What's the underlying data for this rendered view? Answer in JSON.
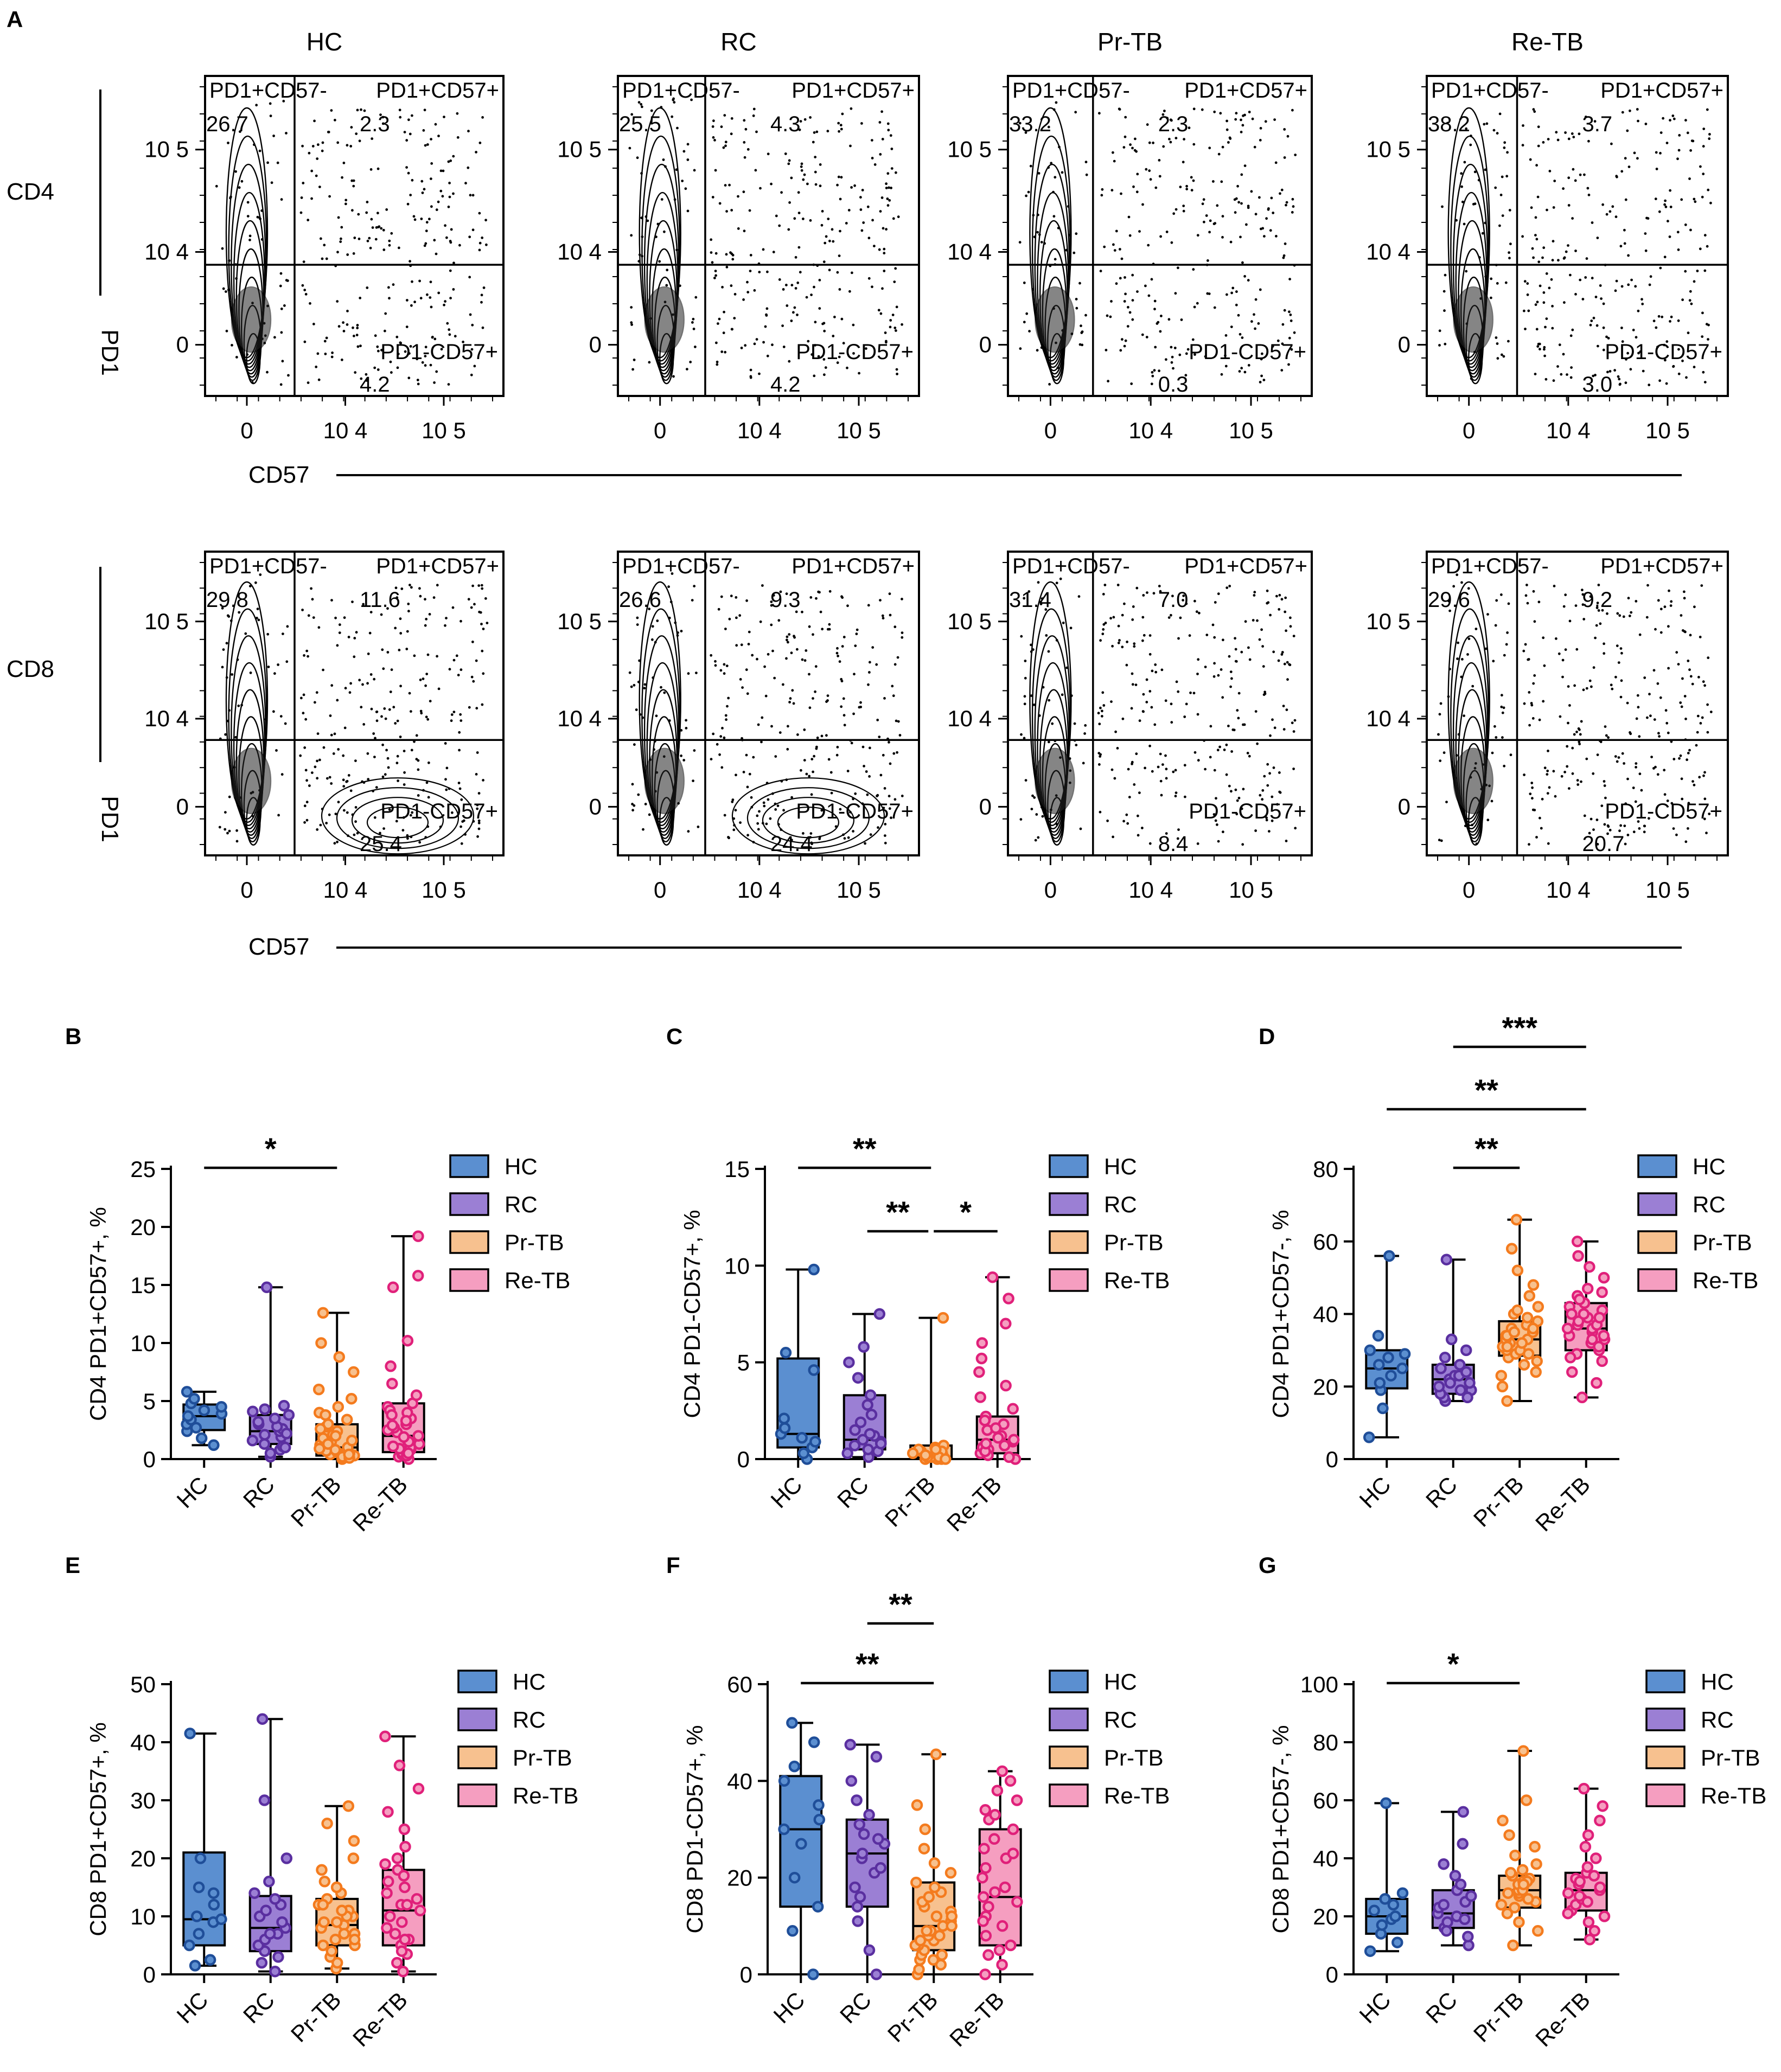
{
  "figure_labels": {
    "A": "A",
    "B": "B",
    "C": "C",
    "D": "D",
    "E": "E",
    "F": "F",
    "G": "G"
  },
  "group_names": [
    "HC",
    "RC",
    "Pr-TB",
    "Re-TB"
  ],
  "colors": {
    "HC": {
      "fill": "#5b8fd0",
      "stroke": "#1f4e99"
    },
    "RC": {
      "fill": "#9b7fd4",
      "stroke": "#5a2fa0"
    },
    "Pr-TB": {
      "fill": "#f7c18f",
      "stroke": "#f47b1e"
    },
    "Re-TB": {
      "fill": "#f59ec0",
      "stroke": "#e0207a"
    }
  },
  "flow": {
    "column_titles": [
      "HC",
      "RC",
      "Pr-TB",
      "Re-TB"
    ],
    "row_labels": [
      "CD4",
      "CD8"
    ],
    "y_axis_label": "PD1",
    "x_axis_label": "CD57",
    "y_ticks": [
      "10 5",
      "10 4",
      "0"
    ],
    "x_ticks": [
      "0",
      "10 4",
      "10 5"
    ],
    "gate_names": {
      "top_left": "PD1+CD57-",
      "top_right": "PD1+CD57+",
      "bottom_right": "PD1-CD57+"
    },
    "panels": [
      {
        "row": "CD4",
        "group": "HC",
        "top_left": "26.7",
        "top_right": "2.3",
        "bottom_right": "4.2"
      },
      {
        "row": "CD4",
        "group": "RC",
        "top_left": "25.5",
        "top_right": "4.3",
        "bottom_right": "4.2"
      },
      {
        "row": "CD4",
        "group": "Pr-TB",
        "top_left": "33.2",
        "top_right": "2.3",
        "bottom_right": "0.3"
      },
      {
        "row": "CD4",
        "group": "Re-TB",
        "top_left": "38.2",
        "top_right": "3.7",
        "bottom_right": "3.0"
      },
      {
        "row": "CD8",
        "group": "HC",
        "top_left": "29.8",
        "top_right": "11.6",
        "bottom_right": "25.4"
      },
      {
        "row": "CD8",
        "group": "RC",
        "top_left": "26.6",
        "top_right": "9.3",
        "bottom_right": "24.4"
      },
      {
        "row": "CD8",
        "group": "Pr-TB",
        "top_left": "31.4",
        "top_right": "7.0",
        "bottom_right": "8.4"
      },
      {
        "row": "CD8",
        "group": "Re-TB",
        "top_left": "29.6",
        "top_right": "9.2",
        "bottom_right": "20.7"
      }
    ]
  },
  "chart_data": [
    {
      "panel": "B",
      "type": "box",
      "ylabel": "CD4 PD1+CD57+, %",
      "ylim": [
        0,
        25
      ],
      "yticks": [
        0,
        5,
        10,
        15,
        20,
        25
      ],
      "categories": [
        "HC",
        "RC",
        "Pr-TB",
        "Re-TB"
      ],
      "series": [
        {
          "name": "HC",
          "min": 1.2,
          "q1": 2.5,
          "median": 3.7,
          "q3": 4.7,
          "max": 5.8,
          "points": [
            1.2,
            1.8,
            2.4,
            2.7,
            3.0,
            3.4,
            3.7,
            3.9,
            4.2,
            4.5,
            4.8,
            5.2,
            5.8
          ]
        },
        {
          "name": "RC",
          "min": 0.2,
          "q1": 1.3,
          "median": 2.4,
          "q3": 3.8,
          "max": 14.8,
          "points": [
            0.2,
            0.5,
            0.8,
            1.1,
            1.3,
            1.6,
            1.9,
            2.1,
            2.4,
            2.6,
            2.8,
            3.0,
            3.2,
            3.5,
            3.8,
            4.1,
            4.3,
            4.6,
            1.0,
            2.2,
            14.8
          ]
        },
        {
          "name": "Pr-TB",
          "min": 0,
          "q1": 0.3,
          "median": 1.0,
          "q3": 3.0,
          "max": 12.6,
          "points": [
            0,
            0.1,
            0.2,
            0.3,
            0.4,
            0.5,
            0.6,
            0.8,
            1.0,
            1.2,
            1.5,
            1.8,
            2.1,
            2.4,
            2.8,
            3.0,
            3.4,
            4.0,
            4.5,
            5.2,
            6.0,
            7.5,
            8.8,
            10.0,
            12.6,
            0.2,
            0.7,
            1.3,
            2.0,
            0.1,
            0.4,
            0.9,
            1.6,
            2.6,
            3.8
          ]
        },
        {
          "name": "Re-TB",
          "min": 0,
          "q1": 0.6,
          "median": 2.0,
          "q3": 4.8,
          "max": 19.2,
          "points": [
            0,
            0.2,
            0.4,
            0.6,
            0.8,
            1.0,
            1.3,
            1.6,
            2.0,
            2.3,
            2.7,
            3.0,
            3.5,
            4.0,
            4.5,
            4.8,
            5.5,
            6.5,
            8.0,
            10.2,
            14.8,
            15.8,
            19.2,
            0.3,
            0.9,
            1.5,
            2.5,
            3.3,
            4.2,
            0.5,
            1.1,
            1.9,
            2.9,
            3.8
          ]
        }
      ],
      "significance": [
        {
          "from": 0,
          "to": 2,
          "label": "*"
        }
      ]
    },
    {
      "panel": "C",
      "type": "box",
      "ylabel": "CD4 PD1-CD57+, %",
      "ylim": [
        0,
        15
      ],
      "yticks": [
        0,
        5,
        10,
        15
      ],
      "categories": [
        "HC",
        "RC",
        "Pr-TB",
        "Re-TB"
      ],
      "series": [
        {
          "name": "HC",
          "min": 0.0,
          "q1": 0.6,
          "median": 1.3,
          "q3": 5.2,
          "max": 9.8,
          "points": [
            0.0,
            0.3,
            0.6,
            0.9,
            1.1,
            1.3,
            1.6,
            2.1,
            4.6,
            5.5,
            9.8
          ]
        },
        {
          "name": "RC",
          "min": 0.1,
          "q1": 0.5,
          "median": 1.0,
          "q3": 3.3,
          "max": 7.5,
          "points": [
            0.1,
            0.3,
            0.5,
            0.7,
            0.9,
            1.0,
            1.2,
            1.5,
            1.9,
            2.3,
            2.8,
            3.3,
            4.2,
            5.0,
            5.8,
            7.5,
            0.4,
            0.8,
            1.3
          ]
        },
        {
          "name": "Pr-TB",
          "min": 0,
          "q1": 0.0,
          "median": 0.1,
          "q3": 0.7,
          "max": 7.3,
          "points": [
            0,
            0,
            0,
            0.1,
            0.1,
            0.1,
            0.2,
            0.2,
            0.3,
            0.3,
            0.4,
            0.5,
            0.6,
            0.7,
            0.4,
            0.2,
            0.1,
            0.3,
            0.5,
            0,
            7.3
          ]
        },
        {
          "name": "Re-TB",
          "min": 0,
          "q1": 0.3,
          "median": 1.0,
          "q3": 2.2,
          "max": 9.4,
          "points": [
            0,
            0.1,
            0.3,
            0.5,
            0.7,
            0.9,
            1.0,
            1.2,
            1.5,
            1.8,
            2.2,
            2.6,
            3.2,
            3.8,
            4.5,
            5.2,
            6.0,
            7.0,
            8.3,
            9.4,
            0.2,
            0.6,
            1.1,
            1.6,
            2.0,
            0.4,
            0.8
          ]
        }
      ],
      "significance": [
        {
          "from": 0,
          "to": 2,
          "label": "**"
        },
        {
          "from": 1,
          "to": 2,
          "label": "**"
        },
        {
          "from": 2,
          "to": 3,
          "label": "*"
        }
      ]
    },
    {
      "panel": "D",
      "type": "box",
      "ylabel": "CD4 PD1+CD57-, %",
      "ylim": [
        0,
        80
      ],
      "yticks": [
        0,
        20,
        40,
        60,
        80
      ],
      "categories": [
        "HC",
        "RC",
        "Pr-TB",
        "Re-TB"
      ],
      "series": [
        {
          "name": "HC",
          "min": 6,
          "q1": 19.5,
          "median": 25,
          "q3": 30,
          "max": 56,
          "points": [
            6,
            14,
            19,
            21,
            23,
            25,
            26,
            28,
            29,
            30,
            34,
            56
          ]
        },
        {
          "name": "RC",
          "min": 16,
          "q1": 18,
          "median": 22,
          "q3": 26,
          "max": 55,
          "points": [
            16,
            17,
            18,
            19,
            20,
            21,
            22,
            23,
            24,
            25,
            26,
            28,
            30,
            33,
            55,
            19,
            21,
            23,
            17,
            24
          ]
        },
        {
          "name": "Pr-TB",
          "min": 16,
          "q1": 28.5,
          "median": 33,
          "q3": 38,
          "max": 66,
          "points": [
            16,
            20,
            23,
            26,
            28,
            29,
            30,
            31,
            32,
            33,
            34,
            35,
            36,
            37,
            38,
            40,
            42,
            45,
            48,
            52,
            58,
            66,
            27,
            30,
            33,
            36,
            31,
            34,
            39,
            29,
            32,
            35,
            41,
            24
          ]
        },
        {
          "name": "Re-TB",
          "min": 17,
          "q1": 30,
          "median": 36,
          "q3": 43,
          "max": 60,
          "points": [
            17,
            21,
            24,
            27,
            29,
            30,
            32,
            33,
            34,
            35,
            36,
            37,
            38,
            39,
            40,
            41,
            42,
            43,
            45,
            47,
            50,
            53,
            56,
            60,
            31,
            34,
            37,
            40,
            44,
            28,
            36,
            46,
            33,
            39
          ]
        }
      ],
      "significance": [
        {
          "from": 1,
          "to": 3,
          "label": "***"
        },
        {
          "from": 0,
          "to": 3,
          "label": "**"
        },
        {
          "from": 1,
          "to": 2,
          "label": "**"
        }
      ]
    },
    {
      "panel": "E",
      "type": "box",
      "ylabel": "CD8 PD1+CD57+, %",
      "ylim": [
        0,
        50
      ],
      "yticks": [
        0,
        10,
        20,
        30,
        40,
        50
      ],
      "categories": [
        "HC",
        "RC",
        "Pr-TB",
        "Re-TB"
      ],
      "series": [
        {
          "name": "HC",
          "min": 1.5,
          "q1": 5,
          "median": 9.5,
          "q3": 21,
          "max": 41.5,
          "points": [
            1.5,
            2.5,
            5,
            7,
            9,
            9.5,
            10,
            12,
            14,
            15,
            20,
            41.5
          ]
        },
        {
          "name": "RC",
          "min": 0.5,
          "q1": 4,
          "median": 8,
          "q3": 13.5,
          "max": 44,
          "points": [
            0.5,
            2,
            4,
            5,
            6,
            7,
            8,
            9,
            10,
            12,
            13,
            14,
            16,
            20,
            30,
            44,
            3,
            11,
            7
          ]
        },
        {
          "name": "Pr-TB",
          "min": 1,
          "q1": 5,
          "median": 8.5,
          "q3": 13,
          "max": 29,
          "points": [
            1,
            2,
            3,
            4,
            5,
            6,
            7,
            8,
            8.5,
            9,
            10,
            11,
            12,
            13,
            14,
            16,
            18,
            20,
            23,
            26,
            29,
            6,
            9,
            12,
            5,
            10,
            15,
            7,
            11
          ]
        },
        {
          "name": "Re-TB",
          "min": 0.5,
          "q1": 5,
          "median": 11,
          "q3": 18,
          "max": 41,
          "points": [
            0.5,
            2,
            3.5,
            5,
            6,
            7,
            8,
            10,
            11,
            12,
            13,
            15,
            16,
            18,
            20,
            22,
            25,
            28,
            32,
            36,
            41,
            4,
            9,
            14,
            17,
            6,
            12,
            19
          ]
        }
      ],
      "significance": []
    },
    {
      "panel": "F",
      "type": "box",
      "ylabel": "CD8 PD1-CD57+, %",
      "ylim": [
        0,
        60
      ],
      "yticks": [
        0,
        20,
        40,
        60
      ],
      "categories": [
        "HC",
        "RC",
        "Pr-TB",
        "Re-TB"
      ],
      "series": [
        {
          "name": "HC",
          "min": 0,
          "q1": 14,
          "median": 30,
          "q3": 41,
          "max": 52,
          "points": [
            0,
            9,
            14,
            20,
            27,
            30,
            32,
            35,
            40,
            43,
            48,
            52
          ]
        },
        {
          "name": "RC",
          "min": 0,
          "q1": 14,
          "median": 25,
          "q3": 32,
          "max": 47.5,
          "points": [
            0,
            5,
            11,
            14,
            18,
            21,
            24,
            25,
            27,
            29,
            31,
            33,
            36,
            40,
            45,
            47.5,
            16,
            28,
            22
          ]
        },
        {
          "name": "Pr-TB",
          "min": 0,
          "q1": 5,
          "median": 10,
          "q3": 19,
          "max": 45.5,
          "points": [
            0,
            1,
            2,
            3,
            4,
            5,
            6,
            7,
            8,
            9,
            10,
            11,
            12,
            13,
            14,
            15,
            16,
            17,
            19,
            21,
            23,
            26,
            30,
            35,
            45.5,
            3,
            6,
            9,
            12,
            7,
            10,
            4,
            8,
            18
          ]
        },
        {
          "name": "Re-TB",
          "min": 0,
          "q1": 6,
          "median": 16,
          "q3": 30,
          "max": 42,
          "points": [
            0,
            2,
            4,
            6,
            8,
            10,
            12,
            14,
            16,
            18,
            20,
            22,
            24,
            26,
            28,
            30,
            32,
            34,
            36,
            38,
            40,
            42,
            5,
            11,
            17,
            25,
            33,
            15
          ]
        }
      ],
      "significance": [
        {
          "from": 1,
          "to": 2,
          "label": "**"
        },
        {
          "from": 0,
          "to": 2,
          "label": "**"
        }
      ]
    },
    {
      "panel": "G",
      "type": "box",
      "ylabel": "CD8 PD1+CD57-, %",
      "ylim": [
        0,
        100
      ],
      "yticks": [
        0,
        20,
        40,
        60,
        80,
        100
      ],
      "categories": [
        "HC",
        "RC",
        "Pr-TB",
        "Re-TB"
      ],
      "series": [
        {
          "name": "HC",
          "min": 8,
          "q1": 14,
          "median": 20,
          "q3": 26,
          "max": 59,
          "points": [
            8,
            11,
            14,
            17,
            19,
            20,
            22,
            24,
            26,
            28,
            59
          ]
        },
        {
          "name": "RC",
          "min": 10,
          "q1": 16,
          "median": 21,
          "q3": 29,
          "max": 56,
          "points": [
            10,
            13,
            16,
            18,
            20,
            21,
            23,
            25,
            27,
            29,
            31,
            34,
            38,
            45,
            56,
            19,
            24,
            15
          ]
        },
        {
          "name": "Pr-TB",
          "min": 10,
          "q1": 23,
          "median": 29,
          "q3": 34,
          "max": 77,
          "points": [
            10,
            15,
            18,
            21,
            23,
            25,
            27,
            28,
            29,
            30,
            31,
            32,
            33,
            34,
            36,
            38,
            41,
            44,
            48,
            53,
            60,
            77,
            26,
            29,
            32,
            24,
            35,
            28,
            31
          ]
        },
        {
          "name": "Re-TB",
          "min": 12,
          "q1": 22,
          "median": 29,
          "q3": 35,
          "max": 64,
          "points": [
            12,
            15,
            18,
            20,
            22,
            24,
            26,
            28,
            29,
            30,
            31,
            33,
            35,
            37,
            40,
            44,
            48,
            53,
            58,
            64,
            21,
            27,
            32,
            25,
            34
          ]
        }
      ],
      "significance": [
        {
          "from": 0,
          "to": 2,
          "label": "*"
        }
      ]
    }
  ]
}
